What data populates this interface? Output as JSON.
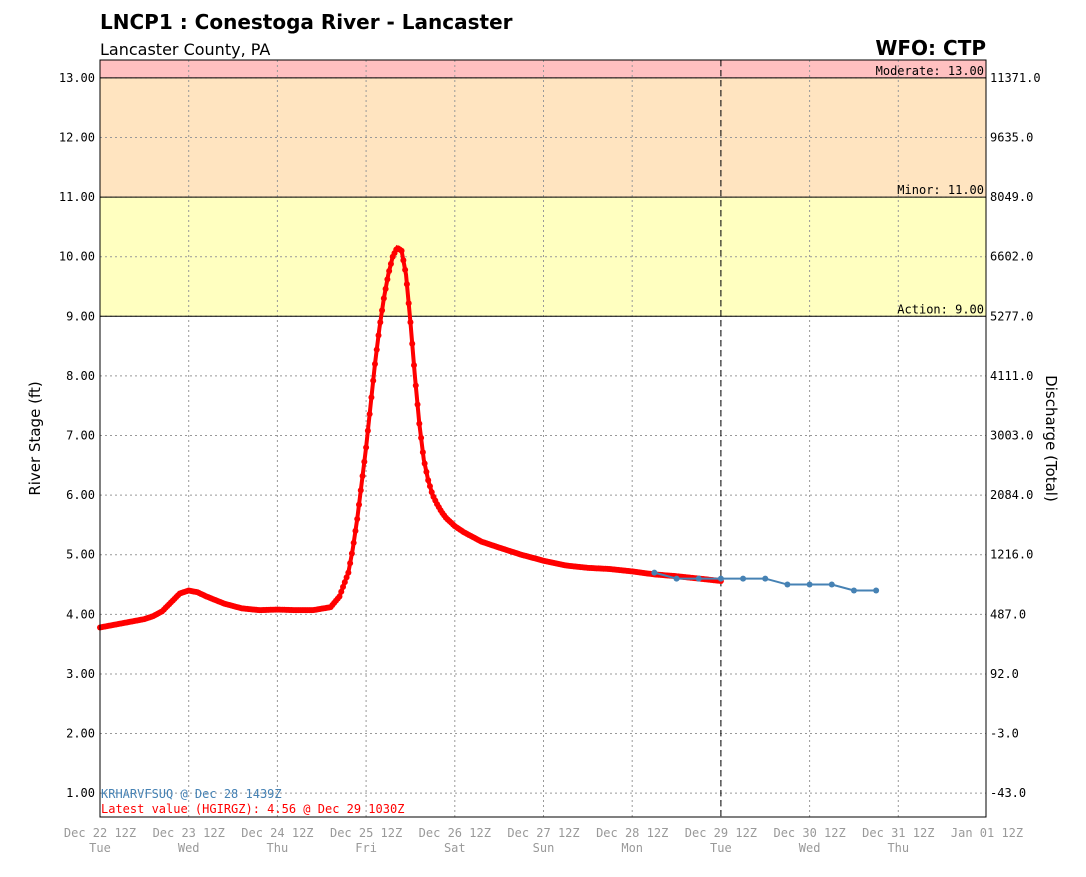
{
  "header": {
    "title": "LNCP1 : Conestoga River - Lancaster",
    "subtitle": "Lancaster County, PA",
    "wfo": "WFO: CTP"
  },
  "colors": {
    "observed": "#ff0000",
    "forecast": "#4682b4",
    "moderate_band": "#ffc0c0",
    "minor_band": "#ffe4c0",
    "action_band": "#ffffc0"
  },
  "chart_data": {
    "type": "line",
    "ylabel": "River Stage (ft)",
    "y2label": "Discharge (Total)",
    "ylim": [
      0.6,
      13.3
    ],
    "x_range": [
      "Dec 22 12Z",
      "Jan 01 12Z"
    ],
    "y_ticks": [
      "1.00",
      "2.00",
      "3.00",
      "4.00",
      "5.00",
      "6.00",
      "7.00",
      "8.00",
      "9.00",
      "10.00",
      "11.00",
      "12.00",
      "13.00"
    ],
    "y2_ticks": [
      "-43.0",
      "-3.0",
      "92.0",
      "487.0",
      "1216.0",
      "2084.0",
      "3003.0",
      "4111.0",
      "5277.0",
      "6602.0",
      "8049.0",
      "9635.0",
      "11371.0"
    ],
    "x_ticks": [
      {
        "label": "Dec 22 12Z",
        "day": "Tue"
      },
      {
        "label": "Dec 23 12Z",
        "day": "Wed"
      },
      {
        "label": "Dec 24 12Z",
        "day": "Thu"
      },
      {
        "label": "Dec 25 12Z",
        "day": "Fri"
      },
      {
        "label": "Dec 26 12Z",
        "day": "Sat"
      },
      {
        "label": "Dec 27 12Z",
        "day": "Sun"
      },
      {
        "label": "Dec 28 12Z",
        "day": "Mon"
      },
      {
        "label": "Dec 29 12Z",
        "day": "Tue"
      },
      {
        "label": "Dec 30 12Z",
        "day": "Wed"
      },
      {
        "label": "Dec 31 12Z",
        "day": "Thu"
      },
      {
        "label": "Jan 01 12Z",
        "day": ""
      }
    ],
    "thresholds": [
      {
        "name": "Action",
        "label": "Action: 9.00",
        "value": 9.0
      },
      {
        "name": "Minor",
        "label": "Minor: 11.00",
        "value": 11.0
      },
      {
        "name": "Moderate",
        "label": "Moderate: 13.00",
        "value": 13.0
      }
    ],
    "now_marker": "Dec 29 12Z",
    "observed_label": "Latest value (HGIRGZ): 4.56 @ Dec 29 1030Z",
    "forecast_label": "KRHARVFSUQ @ Dec 28 1439Z",
    "series": [
      {
        "key": "observed",
        "x_days": [
          0.0,
          0.25,
          0.5,
          0.6,
          0.7,
          0.8,
          0.9,
          1.0,
          1.1,
          1.2,
          1.4,
          1.6,
          1.8,
          2.0,
          2.2,
          2.4,
          2.6,
          2.7,
          2.8,
          2.85,
          2.9,
          2.95,
          3.0,
          3.05,
          3.1,
          3.15,
          3.2,
          3.25,
          3.3,
          3.35,
          3.4,
          3.45,
          3.5,
          3.55,
          3.6,
          3.65,
          3.7,
          3.75,
          3.8,
          3.85,
          3.9,
          3.95,
          4.0,
          4.1,
          4.2,
          4.3,
          4.5,
          4.75,
          5.0,
          5.25,
          5.5,
          5.75,
          6.0,
          6.25,
          6.5,
          7.0
        ],
        "y": [
          3.78,
          3.85,
          3.92,
          3.97,
          4.05,
          4.2,
          4.35,
          4.4,
          4.37,
          4.3,
          4.18,
          4.1,
          4.07,
          4.08,
          4.07,
          4.07,
          4.12,
          4.3,
          4.7,
          5.1,
          5.6,
          6.2,
          6.8,
          7.5,
          8.2,
          8.8,
          9.3,
          9.7,
          10.0,
          10.15,
          10.1,
          9.7,
          8.9,
          8.0,
          7.2,
          6.6,
          6.25,
          6.0,
          5.85,
          5.72,
          5.62,
          5.55,
          5.48,
          5.38,
          5.3,
          5.22,
          5.12,
          5.0,
          4.9,
          4.82,
          4.78,
          4.76,
          4.72,
          4.67,
          4.64,
          4.56
        ]
      },
      {
        "key": "forecast",
        "x_days": [
          6.25,
          6.5,
          6.75,
          7.0,
          7.25,
          7.5,
          7.75,
          8.0,
          8.25,
          8.5,
          8.75
        ],
        "y": [
          4.7,
          4.6,
          4.6,
          4.6,
          4.6,
          4.6,
          4.5,
          4.5,
          4.5,
          4.4,
          4.4
        ]
      }
    ]
  }
}
